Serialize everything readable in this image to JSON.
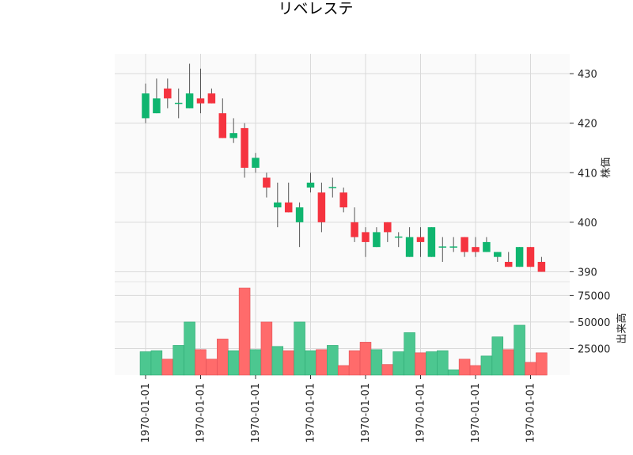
{
  "chart_data": {
    "type": "candlestick",
    "title": "リベレステ",
    "price_panel": {
      "ylabel": "株価",
      "ylim": [
        388,
        434
      ],
      "yticks": [
        390,
        400,
        410,
        420,
        430
      ],
      "candles": [
        {
          "o": 421,
          "h": 428,
          "l": 420,
          "c": 426
        },
        {
          "o": 422,
          "h": 429,
          "l": 422,
          "c": 425
        },
        {
          "o": 427,
          "h": 429,
          "l": 423,
          "c": 425
        },
        {
          "o": 424,
          "h": 427,
          "l": 421,
          "c": 424
        },
        {
          "o": 423,
          "h": 432,
          "l": 423,
          "c": 426
        },
        {
          "o": 425,
          "h": 431,
          "l": 422,
          "c": 424
        },
        {
          "o": 426,
          "h": 427,
          "l": 424,
          "c": 424
        },
        {
          "o": 422,
          "h": 425,
          "l": 417,
          "c": 417
        },
        {
          "o": 417,
          "h": 421,
          "l": 416,
          "c": 418
        },
        {
          "o": 419,
          "h": 420,
          "l": 409,
          "c": 411
        },
        {
          "o": 411,
          "h": 414,
          "l": 410,
          "c": 413
        },
        {
          "o": 409,
          "h": 410,
          "l": 405,
          "c": 407
        },
        {
          "o": 403,
          "h": 408,
          "l": 399,
          "c": 404
        },
        {
          "o": 404,
          "h": 408,
          "l": 402,
          "c": 402
        },
        {
          "o": 400,
          "h": 404,
          "l": 395,
          "c": 403
        },
        {
          "o": 407,
          "h": 410,
          "l": 406,
          "c": 408
        },
        {
          "o": 406,
          "h": 408,
          "l": 398,
          "c": 400
        },
        {
          "o": 407,
          "h": 409,
          "l": 405,
          "c": 407
        },
        {
          "o": 406,
          "h": 407,
          "l": 402,
          "c": 403
        },
        {
          "o": 400,
          "h": 403,
          "l": 396,
          "c": 397
        },
        {
          "o": 398,
          "h": 399,
          "l": 393,
          "c": 396
        },
        {
          "o": 395,
          "h": 399,
          "l": 395,
          "c": 398
        },
        {
          "o": 400,
          "h": 400,
          "l": 396,
          "c": 398
        },
        {
          "o": 397,
          "h": 398,
          "l": 395,
          "c": 397
        },
        {
          "o": 393,
          "h": 399,
          "l": 393,
          "c": 397
        },
        {
          "o": 397,
          "h": 399,
          "l": 393,
          "c": 396
        },
        {
          "o": 393,
          "h": 399,
          "l": 393,
          "c": 399
        },
        {
          "o": 395,
          "h": 397,
          "l": 392,
          "c": 395
        },
        {
          "o": 395,
          "h": 397,
          "l": 394,
          "c": 395
        },
        {
          "o": 397,
          "h": 397,
          "l": 393,
          "c": 394
        },
        {
          "o": 395,
          "h": 397,
          "l": 393,
          "c": 394
        },
        {
          "o": 394,
          "h": 397,
          "l": 394,
          "c": 396
        },
        {
          "o": 393,
          "h": 394,
          "l": 392,
          "c": 394
        },
        {
          "o": 392,
          "h": 394,
          "l": 391,
          "c": 391
        },
        {
          "o": 391,
          "h": 395,
          "l": 391,
          "c": 395
        },
        {
          "o": 395,
          "h": 395,
          "l": 391,
          "c": 391
        },
        {
          "o": 392,
          "h": 393,
          "l": 390,
          "c": 390
        }
      ]
    },
    "volume_panel": {
      "ylabel": "出来高",
      "ylim": [
        0,
        82000
      ],
      "yticks": [
        25000,
        50000,
        75000
      ],
      "ytick_labels": [
        "25000",
        "50000",
        "75000"
      ],
      "values": [
        22000,
        23000,
        15000,
        28000,
        50000,
        24000,
        15000,
        34000,
        23000,
        82000,
        24000,
        50000,
        27000,
        23000,
        50000,
        23000,
        24000,
        28000,
        9000,
        23000,
        31000,
        24000,
        10000,
        22000,
        40000,
        21000,
        22000,
        23000,
        5000,
        15000,
        9000,
        18000,
        36000,
        24000,
        47000,
        12000,
        21000
      ]
    },
    "x_tick_labels": [
      "1970-01-01",
      "1970-01-01",
      "1970-01-01",
      "1970-01-01",
      "1970-01-01",
      "1970-01-01",
      "1970-01-01",
      "1970-01-01"
    ],
    "x_tick_index": [
      0,
      5,
      10,
      15,
      20,
      25,
      30,
      35
    ],
    "colors": {
      "up": "#0fb56f",
      "down": "#f5333f",
      "volume_up": "#4cc790",
      "volume_down": "#ff6b6b",
      "wick": "#555555"
    },
    "grid": true
  }
}
